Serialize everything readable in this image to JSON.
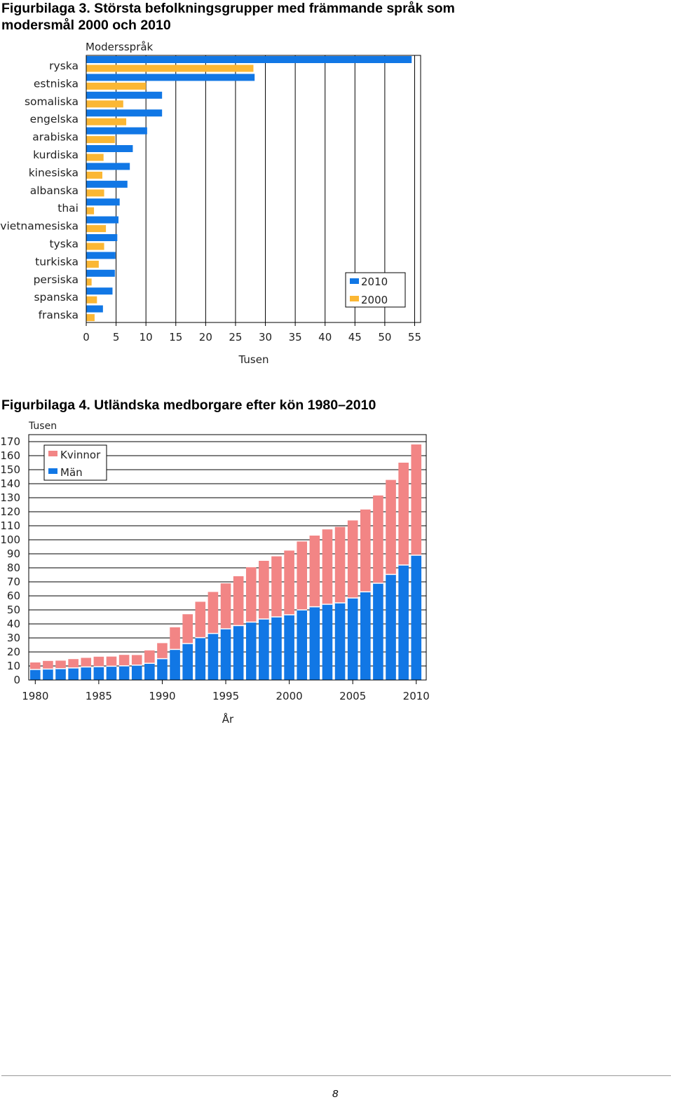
{
  "figures": {
    "fig3_title": "Figurbilaga 3. Största befolkningsgrupper med främmande språk som modersmål 2000 och 2010",
    "fig4_title": "Figurbilaga 4. Utländska medborgare efter kön 1980–2010"
  },
  "page_number": "8",
  "chart_data": [
    {
      "type": "bar",
      "orientation": "horizontal",
      "title": "",
      "ylabel": "Modersspråk",
      "xlabel": "Tusen",
      "xlim": [
        0,
        56
      ],
      "xticks": [
        0,
        5,
        10,
        15,
        20,
        25,
        30,
        35,
        40,
        45,
        50,
        55
      ],
      "grid": true,
      "legend_position": "bottom-right",
      "categories": [
        "ryska",
        "estniska",
        "somaliska",
        "engelska",
        "arabiska",
        "kurdiska",
        "kinesiska",
        "albanska",
        "thai",
        "vietnamesiska",
        "tyska",
        "turkiska",
        "persiska",
        "spanska",
        "franska"
      ],
      "series": [
        {
          "name": "2010",
          "color": "#1177e5",
          "values": [
            54.5,
            28.2,
            12.7,
            12.7,
            10.2,
            7.8,
            7.3,
            6.9,
            5.6,
            5.4,
            5.2,
            4.9,
            4.8,
            4.4,
            2.8
          ]
        },
        {
          "name": "2000",
          "color": "#fbb734",
          "values": [
            28.0,
            10.0,
            6.2,
            6.7,
            4.8,
            2.9,
            2.7,
            3.0,
            1.3,
            3.3,
            3.0,
            2.1,
            0.9,
            1.8,
            1.4
          ]
        }
      ]
    },
    {
      "type": "bar",
      "stacked": true,
      "title": "",
      "ylabel": "Tusen",
      "xlabel": "År",
      "ylim": [
        0,
        170
      ],
      "yticks": [
        0,
        10,
        20,
        30,
        40,
        50,
        60,
        70,
        80,
        90,
        100,
        110,
        120,
        130,
        140,
        150,
        160,
        170
      ],
      "xticks": [
        1980,
        1985,
        1990,
        1995,
        2000,
        2005,
        2010
      ],
      "grid": true,
      "legend_position": "top-left",
      "x": [
        1980,
        1981,
        1982,
        1983,
        1984,
        1985,
        1986,
        1987,
        1988,
        1989,
        1990,
        1991,
        1992,
        1993,
        1994,
        1995,
        1996,
        1997,
        1998,
        1999,
        2000,
        2001,
        2002,
        2003,
        2004,
        2005,
        2006,
        2007,
        2008,
        2009,
        2010
      ],
      "series": [
        {
          "name": "Män",
          "color": "#1177e5",
          "values": [
            7.5,
            7.8,
            8.1,
            8.6,
            9.3,
            9.5,
            9.8,
            10.1,
            10.6,
            11.9,
            15.2,
            21.8,
            26.0,
            30.2,
            33.2,
            36.5,
            38.8,
            41.3,
            43.5,
            45.0,
            46.5,
            50.0,
            52.2,
            54.0,
            55.0,
            58.5,
            62.9,
            69.0,
            75.3,
            82.0,
            89.0
          ]
        },
        {
          "name": "Kvinnor",
          "color": "#f28585",
          "values": [
            5.0,
            5.8,
            5.7,
            6.3,
            6.5,
            7.1,
            6.9,
            7.8,
            7.2,
            9.2,
            11.1,
            15.8,
            20.9,
            25.6,
            29.6,
            32.4,
            35.2,
            39.1,
            41.5,
            43.2,
            45.8,
            48.8,
            50.8,
            53.4,
            54.2,
            55.3,
            58.7,
            62.6,
            67.4,
            73.0,
            79.0
          ]
        }
      ]
    }
  ]
}
